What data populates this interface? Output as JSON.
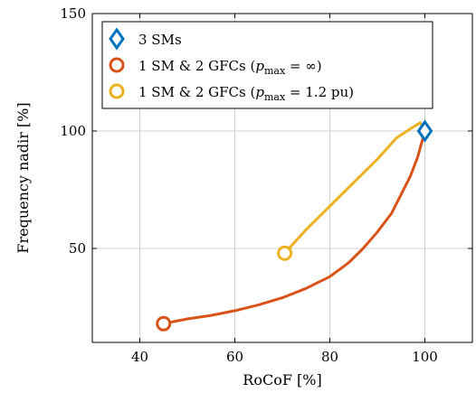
{
  "chart_data": {
    "type": "line",
    "xlabel": "RoCoF [%]",
    "ylabel": "Frequency nadir [%]",
    "xlim": [
      30,
      110
    ],
    "ylim": [
      10,
      150
    ],
    "xticks": [
      40,
      60,
      80,
      100
    ],
    "yticks": [
      50,
      100,
      150
    ],
    "grid": true,
    "legend_position": "top-left",
    "series": [
      {
        "name": "3 SMs",
        "color": "#0072BD",
        "marker": "diamond",
        "points": [
          [
            100,
            100
          ]
        ]
      },
      {
        "name": "1 SM & 2 GFCs (p_max = ∞)",
        "color": "#D95319",
        "marker": "circle-endpoint",
        "points": [
          [
            45,
            18
          ],
          [
            50,
            20
          ],
          [
            55,
            21.5
          ],
          [
            60,
            23.5
          ],
          [
            65,
            26
          ],
          [
            70,
            29
          ],
          [
            75,
            33
          ],
          [
            80,
            38
          ],
          [
            84,
            44
          ],
          [
            87,
            50
          ],
          [
            90,
            57
          ],
          [
            93,
            65
          ],
          [
            95,
            73
          ],
          [
            97,
            81
          ],
          [
            98.5,
            89
          ],
          [
            100,
            100
          ]
        ]
      },
      {
        "name": "1 SM & 2 GFCs (p_max = 1.2 pu)",
        "color": "#EDB120",
        "marker": "circle-endpoint",
        "points": [
          [
            70.5,
            48
          ],
          [
            75,
            58
          ],
          [
            80,
            68
          ],
          [
            85,
            78
          ],
          [
            90,
            88
          ],
          [
            94,
            97
          ],
          [
            97,
            101
          ],
          [
            99,
            103.5
          ],
          [
            100,
            100
          ]
        ]
      }
    ],
    "legend": [
      {
        "main": "3 SMs",
        "sym": "",
        "math": "",
        "tail": ""
      },
      {
        "main": "1 SM & 2 GFCs (",
        "sym": "p",
        "math": "max",
        "tail": " = ∞)"
      },
      {
        "main": "1 SM & 2 GFCs (",
        "sym": "p",
        "math": "max",
        "tail": " = 1.2 pu)"
      }
    ]
  }
}
